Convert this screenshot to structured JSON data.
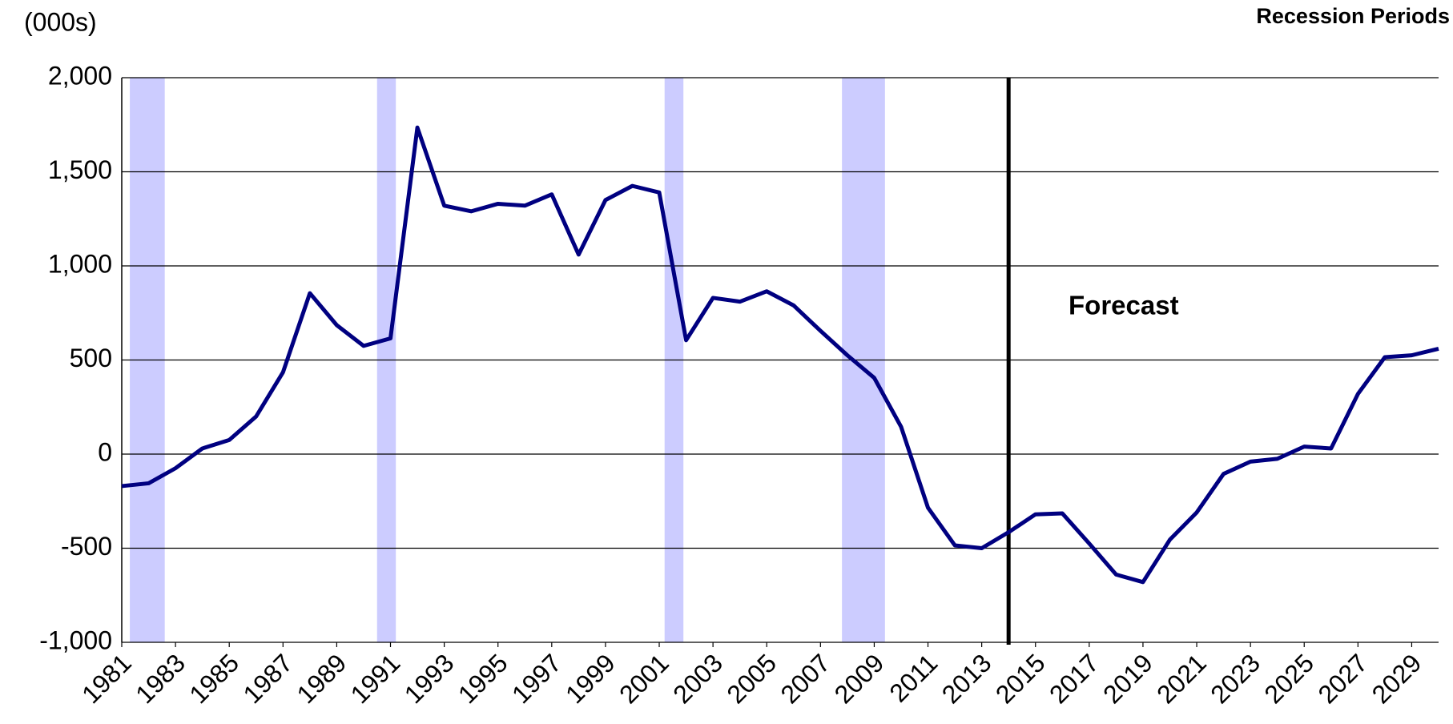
{
  "chart_data": {
    "type": "line",
    "y_label": "(000s)",
    "legend_label": "Recession Periods",
    "annotation": "Forecast",
    "x": [
      1981,
      1982,
      1983,
      1984,
      1985,
      1986,
      1987,
      1988,
      1989,
      1990,
      1991,
      1992,
      1993,
      1994,
      1995,
      1996,
      1997,
      1998,
      1999,
      2000,
      2001,
      2002,
      2003,
      2004,
      2005,
      2006,
      2007,
      2008,
      2009,
      2010,
      2011,
      2012,
      2013,
      2014,
      2015,
      2016,
      2017,
      2018,
      2019,
      2020,
      2021,
      2022,
      2023,
      2024,
      2025,
      2026,
      2027,
      2028,
      2029,
      2030
    ],
    "series": [
      {
        "color": "#000080",
        "values": [
          -170,
          -155,
          -75,
          30,
          75,
          200,
          435,
          855,
          685,
          575,
          615,
          1735,
          1320,
          1290,
          1330,
          1320,
          1380,
          1060,
          1350,
          1425,
          1390,
          605,
          830,
          810,
          865,
          790,
          655,
          525,
          405,
          145,
          -285,
          -485,
          -500,
          -415,
          -320,
          -315,
          -475,
          -640,
          -680,
          -455,
          -310,
          -105,
          -40,
          -25,
          40,
          30,
          320,
          515,
          525,
          560
        ]
      }
    ],
    "recession_periods": [
      [
        1981.3,
        1982.6
      ],
      [
        1990.5,
        1991.2
      ],
      [
        2001.2,
        2001.9
      ],
      [
        2007.8,
        2009.4
      ]
    ],
    "recession_color": "#ccccff",
    "forecast_start": 2014,
    "xlim": [
      1981,
      2030
    ],
    "xticks": [
      1981,
      1983,
      1985,
      1987,
      1989,
      1991,
      1993,
      1995,
      1997,
      1999,
      2001,
      2003,
      2005,
      2007,
      2009,
      2011,
      2013,
      2015,
      2017,
      2019,
      2021,
      2023,
      2025,
      2027,
      2029
    ],
    "ylim": [
      -1000,
      2000
    ],
    "yticks": [
      {
        "value": -1000,
        "label": "-1,000"
      },
      -500,
      0,
      500,
      {
        "value": 1000,
        "label": "1,000"
      },
      {
        "value": 1500,
        "label": "1,500"
      },
      {
        "value": 2000,
        "label": "2,000"
      }
    ],
    "grid": true
  }
}
